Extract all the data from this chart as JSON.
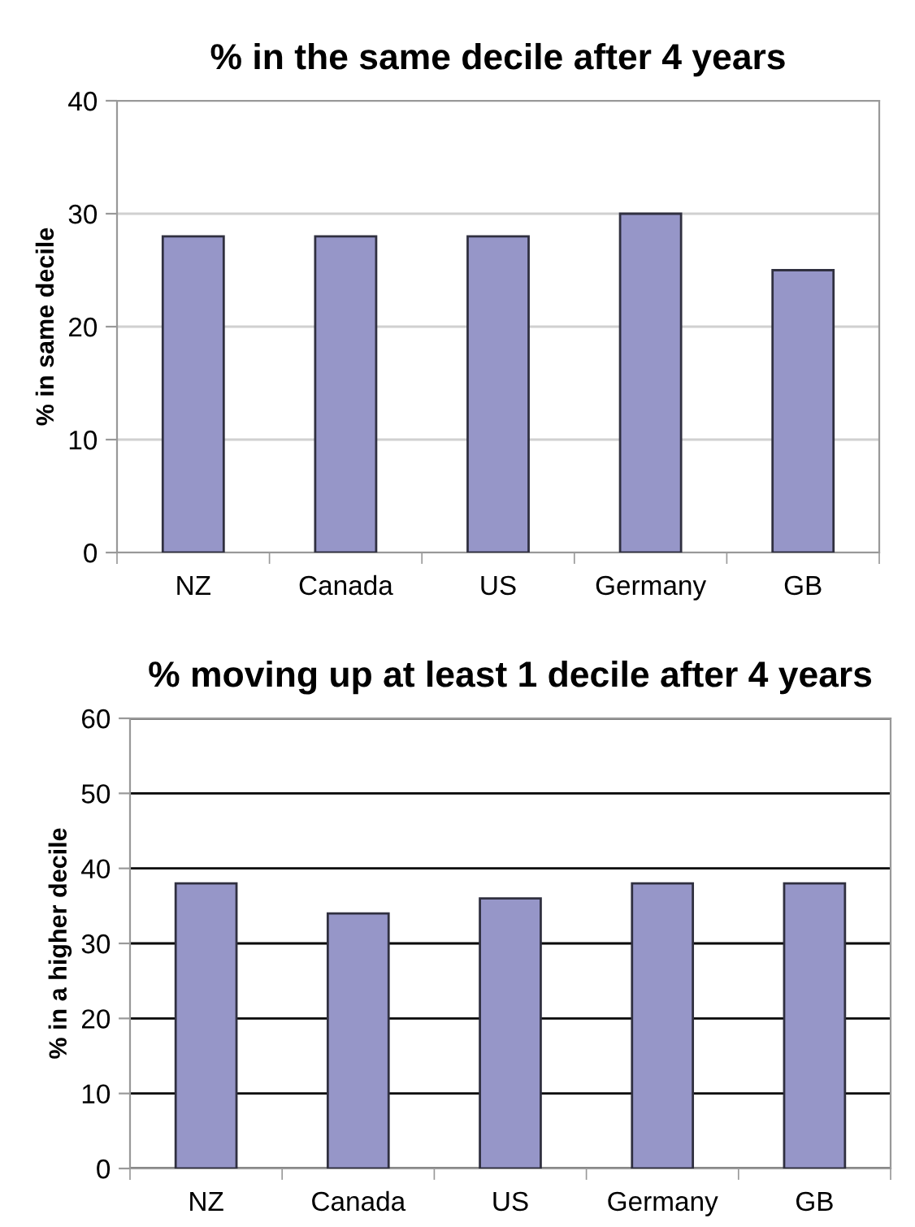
{
  "chart_data": [
    {
      "type": "bar",
      "title": "% in the same decile after 4 years",
      "ylabel": "% in same decile",
      "categories": [
        "NZ",
        "Canada",
        "US",
        "Germany",
        "GB"
      ],
      "values": [
        28,
        28,
        28,
        30,
        25
      ],
      "color": "#9696c8",
      "ylim": [
        0,
        40
      ],
      "yticks": [
        0,
        10,
        20,
        30,
        40
      ],
      "grid": "y"
    },
    {
      "type": "bar",
      "title": "% moving up at least 1 decile after 4 years",
      "ylabel": "% in a higher decile",
      "categories": [
        "NZ",
        "Canada",
        "US",
        "Germany",
        "GB"
      ],
      "values": [
        38,
        34,
        36,
        38,
        38
      ],
      "color": "#9696c8",
      "ylim": [
        0,
        60
      ],
      "yticks": [
        0,
        10,
        20,
        30,
        40,
        50,
        60
      ],
      "grid": "y"
    }
  ]
}
